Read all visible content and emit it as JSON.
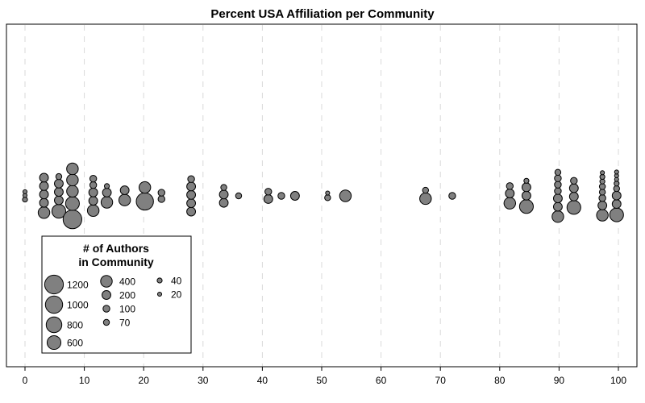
{
  "chart_data": {
    "type": "scatter",
    "title": "Percent USA Affiliation per Community",
    "xlabel": "",
    "ylabel": "",
    "xlim": [
      0,
      100
    ],
    "x_ticks": [
      "0",
      "10",
      "20",
      "30",
      "40",
      "50",
      "60",
      "70",
      "80",
      "90",
      "100"
    ],
    "grid": "vertical dashed",
    "legend": {
      "title_line1": "# of Authors",
      "title_line2": "in Community",
      "placement": "bottom-left",
      "entries": [
        {
          "label": "1200",
          "size": 1200
        },
        {
          "label": "1000",
          "size": 1000
        },
        {
          "label": "800",
          "size": 800
        },
        {
          "label": "600",
          "size": 600
        },
        {
          "label": "400",
          "size": 400
        },
        {
          "label": "200",
          "size": 200
        },
        {
          "label": "100",
          "size": 100
        },
        {
          "label": "70",
          "size": 70
        },
        {
          "label": "40",
          "size": 40
        },
        {
          "label": "20",
          "size": 20
        }
      ]
    },
    "marker_color": "#808080",
    "communities": [
      {
        "x": 0,
        "sizes": [
          40,
          20,
          20
        ]
      },
      {
        "x": 3.2,
        "sizes": [
          400,
          200,
          200,
          200,
          200
        ]
      },
      {
        "x": 5.7,
        "sizes": [
          600,
          200,
          200,
          200,
          70
        ]
      },
      {
        "x": 8,
        "sizes": [
          1200,
          600,
          400,
          400,
          400
        ]
      },
      {
        "x": 11.5,
        "sizes": [
          400,
          200,
          200,
          100,
          100
        ]
      },
      {
        "x": 13.8,
        "sizes": [
          400,
          200,
          40
        ]
      },
      {
        "x": 16.8,
        "sizes": [
          400,
          200
        ]
      },
      {
        "x": 20.2,
        "sizes": [
          1000,
          400
        ]
      },
      {
        "x": 23,
        "sizes": [
          100,
          100
        ]
      },
      {
        "x": 28,
        "sizes": [
          200,
          200,
          200,
          200,
          100
        ]
      },
      {
        "x": 33.5,
        "sizes": [
          200,
          200,
          70
        ]
      },
      {
        "x": 36,
        "sizes": [
          70
        ]
      },
      {
        "x": 41,
        "sizes": [
          200,
          100
        ]
      },
      {
        "x": 43.2,
        "sizes": [
          100
        ]
      },
      {
        "x": 45.5,
        "sizes": [
          200
        ]
      },
      {
        "x": 51,
        "sizes": [
          70,
          20
        ]
      },
      {
        "x": 54,
        "sizes": [
          400
        ]
      },
      {
        "x": 67.5,
        "sizes": [
          400,
          70
        ]
      },
      {
        "x": 72,
        "sizes": [
          100
        ]
      },
      {
        "x": 81.7,
        "sizes": [
          400,
          200,
          100
        ]
      },
      {
        "x": 84.5,
        "sizes": [
          600,
          200,
          200,
          40
        ]
      },
      {
        "x": 89.8,
        "sizes": [
          400,
          200,
          200,
          100,
          100,
          100,
          70
        ]
      },
      {
        "x": 92.5,
        "sizes": [
          600,
          200,
          200,
          100
        ]
      },
      {
        "x": 97.3,
        "sizes": [
          400,
          200,
          100,
          70,
          70,
          40,
          40,
          20
        ]
      },
      {
        "x": 99.7,
        "sizes": [
          600,
          200,
          200,
          70,
          40,
          20,
          20,
          20
        ]
      }
    ]
  }
}
